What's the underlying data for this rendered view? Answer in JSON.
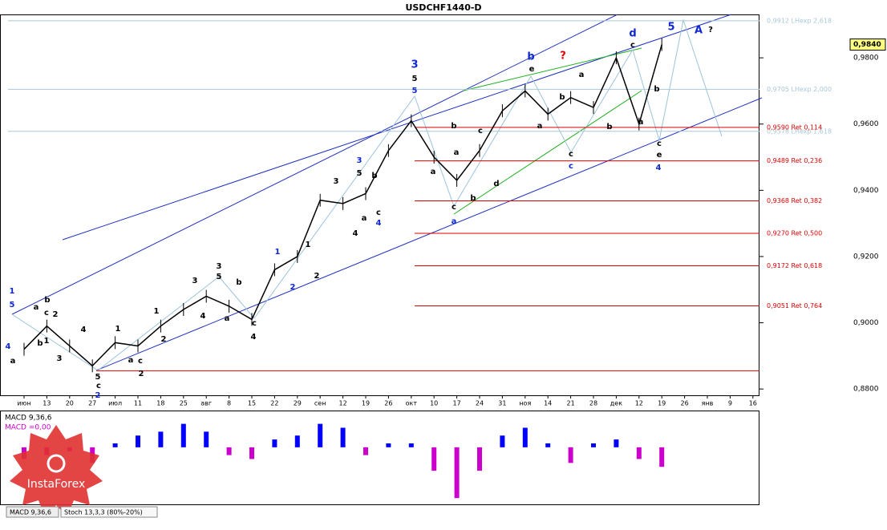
{
  "chart_data": [
    {
      "type": "line",
      "title": "USDCHF1440-D",
      "categories": [
        "июн",
        "13",
        "20",
        "27",
        "июл",
        "11",
        "18",
        "25",
        "авг",
        "8",
        "15",
        "22",
        "29",
        "сен",
        "12",
        "19",
        "26",
        "окт",
        "10",
        "17",
        "24",
        "31",
        "ноя",
        "14",
        "21",
        "28",
        "дек",
        "12",
        "19",
        "26",
        "янв",
        "9",
        "16"
      ],
      "series": [
        {
          "name": "USDCHF",
          "color": "#000000",
          "values": [
            0.892,
            0.899,
            0.893,
            0.887,
            0.894,
            0.893,
            0.899,
            0.904,
            0.908,
            0.905,
            0.901,
            0.916,
            0.92,
            0.937,
            0.936,
            0.939,
            0.952,
            0.961,
            0.95,
            0.943,
            0.952,
            0.964,
            0.97,
            0.963,
            0.968,
            0.965,
            0.98,
            0.96,
            0.984,
            null,
            null,
            null,
            null
          ]
        }
      ],
      "ylim": [
        0.8781,
        0.9931
      ],
      "yticks": [
        {
          "value": 0.98,
          "label": "0,9800"
        },
        {
          "value": 0.96,
          "label": "0,9600"
        },
        {
          "value": 0.94,
          "label": "0,9400"
        },
        {
          "value": 0.92,
          "label": "0,9200"
        },
        {
          "value": 0.9,
          "label": "0,9000"
        },
        {
          "value": 0.88,
          "label": "0,8800"
        }
      ],
      "current_price": {
        "value": 0.984,
        "label": "0,9840"
      },
      "levels": [
        {
          "value": 0.9912,
          "label": "0,9912 LHexp 2,618",
          "color": "#a8c8d8"
        },
        {
          "value": 0.9705,
          "label": "0,9705 LHexp 2,000",
          "color": "#a8c8d8"
        },
        {
          "value": 0.9578,
          "label": "0,9578 LHexp 1,618",
          "color": "#a8c8d8"
        },
        {
          "value": 0.959,
          "label": "0,9590 Ret 0,114",
          "color": "#dd0000"
        },
        {
          "value": 0.9489,
          "label": "0,9489 Ret 0,236",
          "color": "#dd0000"
        },
        {
          "value": 0.9368,
          "label": "0,9368 Ret 0,382",
          "color": "#dd0000"
        },
        {
          "value": 0.927,
          "label": "0,9270 Ret 0,500",
          "color": "#dd0000"
        },
        {
          "value": 0.9172,
          "label": "0,9172 Ret 0,618",
          "color": "#dd0000"
        },
        {
          "value": 0.9051,
          "label": "0,9051 Ret 0,764",
          "color": "#dd0000"
        },
        {
          "value": 0.8855,
          "color": "#dd0000"
        }
      ],
      "annotations": [
        "1",
        "5",
        "4",
        "a",
        "a",
        "b",
        "c",
        "2",
        "b",
        "1",
        "3",
        "4",
        "5",
        "c",
        "2",
        "1",
        "2",
        "a",
        "c",
        "1",
        "2",
        "3",
        "4",
        "3",
        "5",
        "b",
        "a",
        "c",
        "4",
        "1",
        "2",
        "1",
        "2",
        "3",
        "4",
        "3",
        "5",
        "b",
        "a",
        "c",
        "4",
        "3",
        "5",
        "5",
        "b",
        "a",
        "c",
        "a",
        "d",
        "c",
        "b",
        "a",
        "b",
        "e",
        "?",
        "a",
        "b",
        "c",
        "c",
        "a",
        "b",
        "d",
        "c",
        "a",
        "b",
        "c",
        "e",
        "4",
        "5",
        "A",
        "?"
      ]
    },
    {
      "type": "bar",
      "title": "MACD 9,36,6",
      "subtitle": "MACD =0,00",
      "values": [
        -0.0015,
        -0.001,
        -0.0005,
        -0.002,
        0.0005,
        0.0015,
        0.002,
        0.003,
        0.002,
        -0.001,
        -0.0015,
        0.001,
        0.0015,
        0.003,
        0.0025,
        -0.001,
        0.0005,
        0.0005,
        -0.003,
        -0.0065,
        -0.003,
        0.0015,
        0.0025,
        0.0005,
        -0.002,
        0.0005,
        0.001,
        -0.0015,
        -0.0025,
        null,
        null,
        null,
        null
      ],
      "colors": {
        "positive": "#0000ff",
        "negative": "#cc00cc"
      },
      "ylim": [
        -0.0072,
        0.0045
      ],
      "tabs": [
        "MACD 9,36,6",
        "Stoch 13,3,3 (80%-20%)"
      ],
      "watermark": "InstaForex"
    }
  ]
}
